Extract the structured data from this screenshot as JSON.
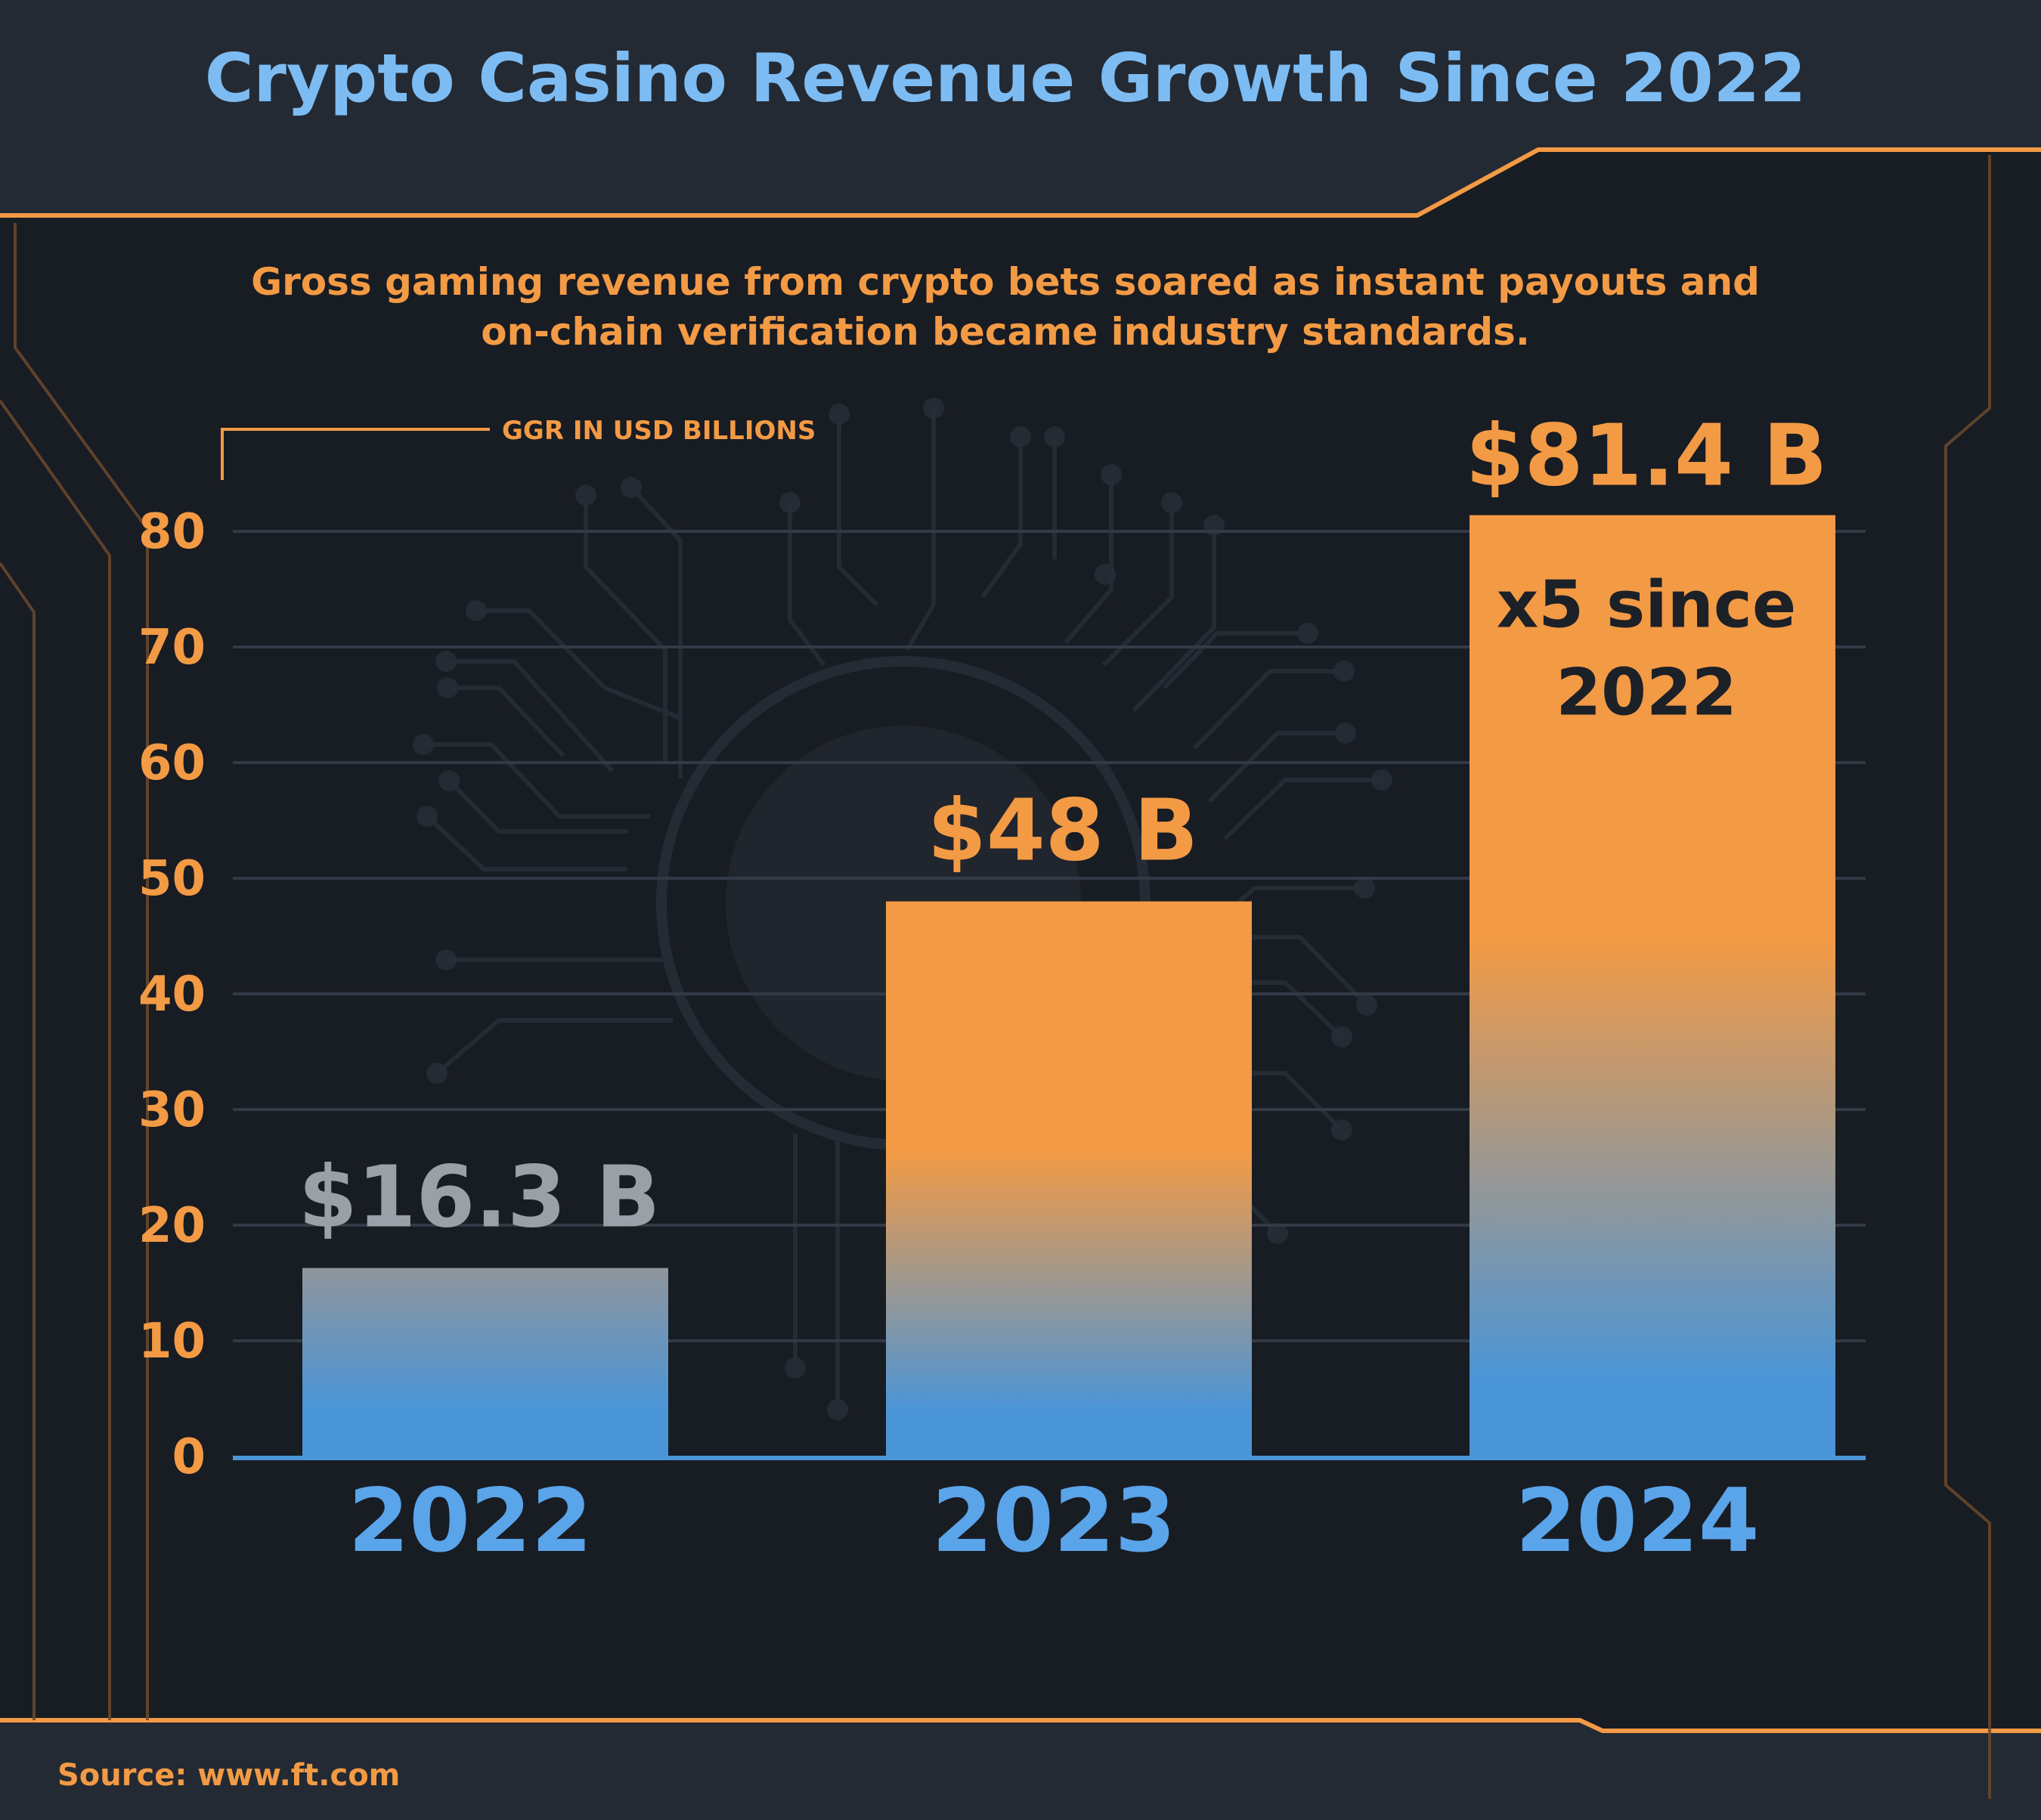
{
  "title": "Crypto Casino Revenue Growth Since 2022",
  "subtitle": "Gross gaming revenue from crypto bets soared as instant payouts and on-chain verification became industry standards.",
  "unit_label": "GGR IN USD BILLIONS",
  "source": {
    "label": "Source:",
    "value": "www.ft.com"
  },
  "colors": {
    "background": "#242a33",
    "plot_bg": "#181c23",
    "title": "#7dbcf3",
    "accent": "#f39a45",
    "bar_base": "#4a95d8",
    "bar_2022_top": "#8f959c",
    "value_2022": "#9aa0a7",
    "year_label": "#5aa4ea",
    "annotation": "#1c2027",
    "gridline": "#323a45"
  },
  "chart_data": {
    "type": "bar",
    "categories": [
      "2022",
      "2023",
      "2024"
    ],
    "values": [
      16.3,
      48,
      81.4
    ],
    "value_labels": [
      "$16.3 B",
      "$48 B",
      "$81.4 B"
    ],
    "ylim": [
      0,
      80
    ],
    "yticks": [
      0,
      10,
      20,
      30,
      40,
      50,
      60,
      70,
      80
    ],
    "ylabel": "GGR IN USD BILLIONS",
    "xlabel": "",
    "grid": true,
    "annotation": {
      "category": "2024",
      "lines": [
        "x5 since",
        "2022"
      ]
    }
  }
}
